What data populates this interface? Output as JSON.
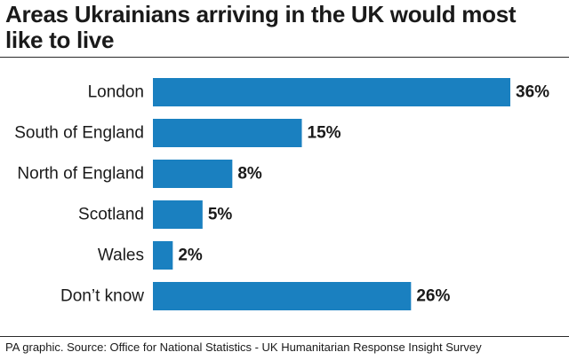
{
  "title": "Areas Ukrainians arriving in the UK would most like to live",
  "source": "PA graphic. Source: Office for National Statistics - UK Humanitarian Response Insight Survey",
  "colors": {
    "bar": "#1a80c0",
    "text": "#1a1a1a",
    "rule": "#2a2a2a"
  },
  "chart_data": {
    "type": "bar",
    "orientation": "horizontal",
    "categories": [
      "London",
      "South of England",
      "North of England",
      "Scotland",
      "Wales",
      "Don’t know"
    ],
    "values": [
      36,
      15,
      8,
      5,
      2,
      26
    ],
    "value_labels": [
      "36%",
      "15%",
      "8%",
      "5%",
      "2%",
      "26%"
    ],
    "unit": "%",
    "xlim": [
      0,
      36
    ],
    "grid": false,
    "legend": "none"
  }
}
